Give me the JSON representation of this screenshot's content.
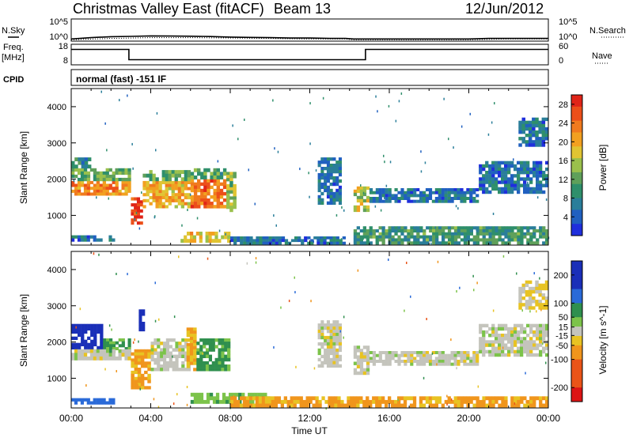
{
  "header": {
    "station": "Christmas Valley East (fitACF)",
    "beam": "Beam 13",
    "date": "12/Jun/2012"
  },
  "side_labels": {
    "nsky": "N.Sky",
    "nsearch": "N.Search",
    "freq": "Freq.",
    "freq_unit": "[MHz]",
    "nave": "Nave",
    "cpid": "CPID"
  },
  "cpid_text": "normal (fast) -151 IF",
  "axes": {
    "x_label": "Time UT",
    "y_label": "Slant Range [km]",
    "x_ticks": [
      "00:00",
      "04:00",
      "08:00",
      "12:00",
      "16:00",
      "20:00",
      "00:00"
    ],
    "y_ticks": [
      "1000",
      "2000",
      "3000",
      "4000"
    ],
    "noise_left_ticks": [
      "10^5",
      "10^0"
    ],
    "noise_right_ticks": [
      "10^5",
      "10^0"
    ],
    "freq_left_ticks": [
      "18",
      "8"
    ],
    "freq_right_ticks": [
      "60",
      "0"
    ]
  },
  "chart_data": [
    {
      "type": "line",
      "panel": "noise",
      "x_unit": "hours UT",
      "xlim": [
        0,
        24
      ],
      "scale": "log",
      "series": [
        {
          "name": "N.Sky",
          "style": "solid",
          "x": [
            0,
            1,
            2,
            3,
            4,
            5,
            6,
            7,
            8,
            9,
            10,
            11,
            12,
            13,
            13.8,
            14.2,
            15,
            16,
            17,
            18,
            19,
            20,
            21,
            22,
            23,
            24
          ],
          "y": [
            3,
            6,
            10,
            12,
            15,
            14,
            13,
            11,
            8,
            7,
            6,
            5,
            5,
            4,
            4,
            3,
            3,
            3,
            3,
            3,
            3,
            3,
            4,
            4,
            4,
            4
          ]
        },
        {
          "name": "N.Search",
          "style": "dotted",
          "x": [
            0,
            2,
            4,
            6,
            8,
            10,
            12,
            13.8,
            14.2,
            16,
            18,
            20,
            22,
            24
          ],
          "y": [
            2,
            4,
            6,
            6,
            5,
            4,
            3,
            3,
            2,
            2,
            2,
            2,
            3,
            3
          ]
        }
      ]
    },
    {
      "type": "line",
      "panel": "frequency",
      "x_unit": "hours UT",
      "xlim": [
        0,
        24
      ],
      "series": [
        {
          "name": "Freq.",
          "style": "solid",
          "unit": "MHz",
          "x": [
            0,
            2.9,
            2.9,
            13.8,
            14.2,
            14.8,
            14.8,
            24
          ],
          "y": [
            15.5,
            15.5,
            10.5,
            10.5,
            10.5,
            10.5,
            15.5,
            15.5
          ]
        },
        {
          "name": "Nave",
          "style": "dotted",
          "x": [
            0,
            24
          ],
          "y": [
            18,
            18
          ]
        }
      ]
    },
    {
      "type": "heatmap",
      "panel": "power",
      "x_unit": "hours UT",
      "xlim": [
        0,
        24
      ],
      "ylim": [
        180,
        4500
      ],
      "colorbar": {
        "label": "Power [dB]",
        "ticks": [
          4,
          8,
          12,
          16,
          20,
          24,
          28
        ],
        "range": [
          0,
          30
        ]
      },
      "regions": [
        {
          "t0": 0.0,
          "t1": 3.0,
          "r0": 1550,
          "r1": 1950,
          "db": 22
        },
        {
          "t0": 0.0,
          "t1": 3.0,
          "r0": 1950,
          "r1": 2300,
          "db": 12
        },
        {
          "t0": 0.0,
          "t1": 1.0,
          "r0": 2300,
          "r1": 2600,
          "db": 8
        },
        {
          "t0": 3.0,
          "t1": 3.6,
          "r0": 750,
          "r1": 1500,
          "db": 28
        },
        {
          "t0": 3.6,
          "t1": 6.0,
          "r0": 1200,
          "r1": 1950,
          "db": 20
        },
        {
          "t0": 3.6,
          "t1": 6.0,
          "r0": 1950,
          "r1": 2250,
          "db": 12
        },
        {
          "t0": 6.0,
          "t1": 7.8,
          "r0": 1200,
          "r1": 2000,
          "db": 24
        },
        {
          "t0": 6.0,
          "t1": 7.8,
          "r0": 2000,
          "r1": 2300,
          "db": 12
        },
        {
          "t0": 7.8,
          "t1": 8.3,
          "r0": 1100,
          "r1": 2200,
          "db": 14
        },
        {
          "t0": 5.5,
          "t1": 8.0,
          "r0": 250,
          "r1": 550,
          "db": 18
        },
        {
          "t0": 0.0,
          "t1": 2.2,
          "r0": 280,
          "r1": 450,
          "db": 6
        },
        {
          "t0": 8.0,
          "t1": 13.8,
          "r0": 200,
          "r1": 420,
          "db": 6
        },
        {
          "t0": 12.4,
          "t1": 13.6,
          "r0": 1300,
          "r1": 2600,
          "db": 6
        },
        {
          "t0": 14.2,
          "t1": 15.0,
          "r0": 1100,
          "r1": 1800,
          "db": 16
        },
        {
          "t0": 15.0,
          "t1": 20.5,
          "r0": 1350,
          "r1": 1750,
          "db": 6
        },
        {
          "t0": 20.5,
          "t1": 24.0,
          "r0": 1600,
          "r1": 2500,
          "db": 6
        },
        {
          "t0": 22.5,
          "t1": 24.0,
          "r0": 2900,
          "r1": 3700,
          "db": 6
        },
        {
          "t0": 14.2,
          "t1": 24.0,
          "r0": 200,
          "r1": 700,
          "db": 10
        }
      ]
    },
    {
      "type": "heatmap",
      "panel": "velocity",
      "x_unit": "hours UT",
      "xlim": [
        0,
        24
      ],
      "ylim": [
        180,
        4500
      ],
      "colorbar": {
        "label": "Velocity [m s^-1]",
        "ticks": [
          200,
          100,
          50,
          15,
          -15,
          -50,
          -100,
          -200
        ],
        "range": [
          -250,
          250
        ]
      },
      "regions": [
        {
          "t0": 0.0,
          "t1": 1.6,
          "r0": 1800,
          "r1": 2500,
          "v": 200
        },
        {
          "t0": 1.6,
          "t1": 3.0,
          "r0": 1700,
          "r1": 2100,
          "v": 60
        },
        {
          "t0": 0.0,
          "t1": 3.0,
          "r0": 1500,
          "r1": 1800,
          "v": 0
        },
        {
          "t0": 3.0,
          "t1": 4.0,
          "r0": 700,
          "r1": 1800,
          "v": -60
        },
        {
          "t0": 3.4,
          "t1": 3.7,
          "r0": 2300,
          "r1": 2900,
          "v": 200
        },
        {
          "t0": 4.0,
          "t1": 6.0,
          "r0": 1200,
          "r1": 2100,
          "v": 0
        },
        {
          "t0": 5.8,
          "t1": 6.3,
          "r0": 1200,
          "r1": 2400,
          "v": -50
        },
        {
          "t0": 6.3,
          "t1": 8.0,
          "r0": 1200,
          "r1": 2100,
          "v": 60
        },
        {
          "t0": 0.0,
          "t1": 2.2,
          "r0": 280,
          "r1": 450,
          "v": 120
        },
        {
          "t0": 6.0,
          "t1": 10.0,
          "r0": 300,
          "r1": 600,
          "v": 40
        },
        {
          "t0": 12.4,
          "t1": 13.6,
          "r0": 1300,
          "r1": 2600,
          "v": 0
        },
        {
          "t0": 14.2,
          "t1": 15.0,
          "r0": 1100,
          "r1": 1900,
          "v": 0
        },
        {
          "t0": 15.0,
          "t1": 20.5,
          "r0": 1350,
          "r1": 1750,
          "v": 0
        },
        {
          "t0": 20.5,
          "t1": 24.0,
          "r0": 1600,
          "r1": 2500,
          "v": 0
        },
        {
          "t0": 22.5,
          "t1": 24.0,
          "r0": 2900,
          "r1": 3700,
          "v": -20
        },
        {
          "t0": 8.0,
          "t1": 24.0,
          "r0": 200,
          "r1": 500,
          "v": -60
        }
      ]
    }
  ]
}
